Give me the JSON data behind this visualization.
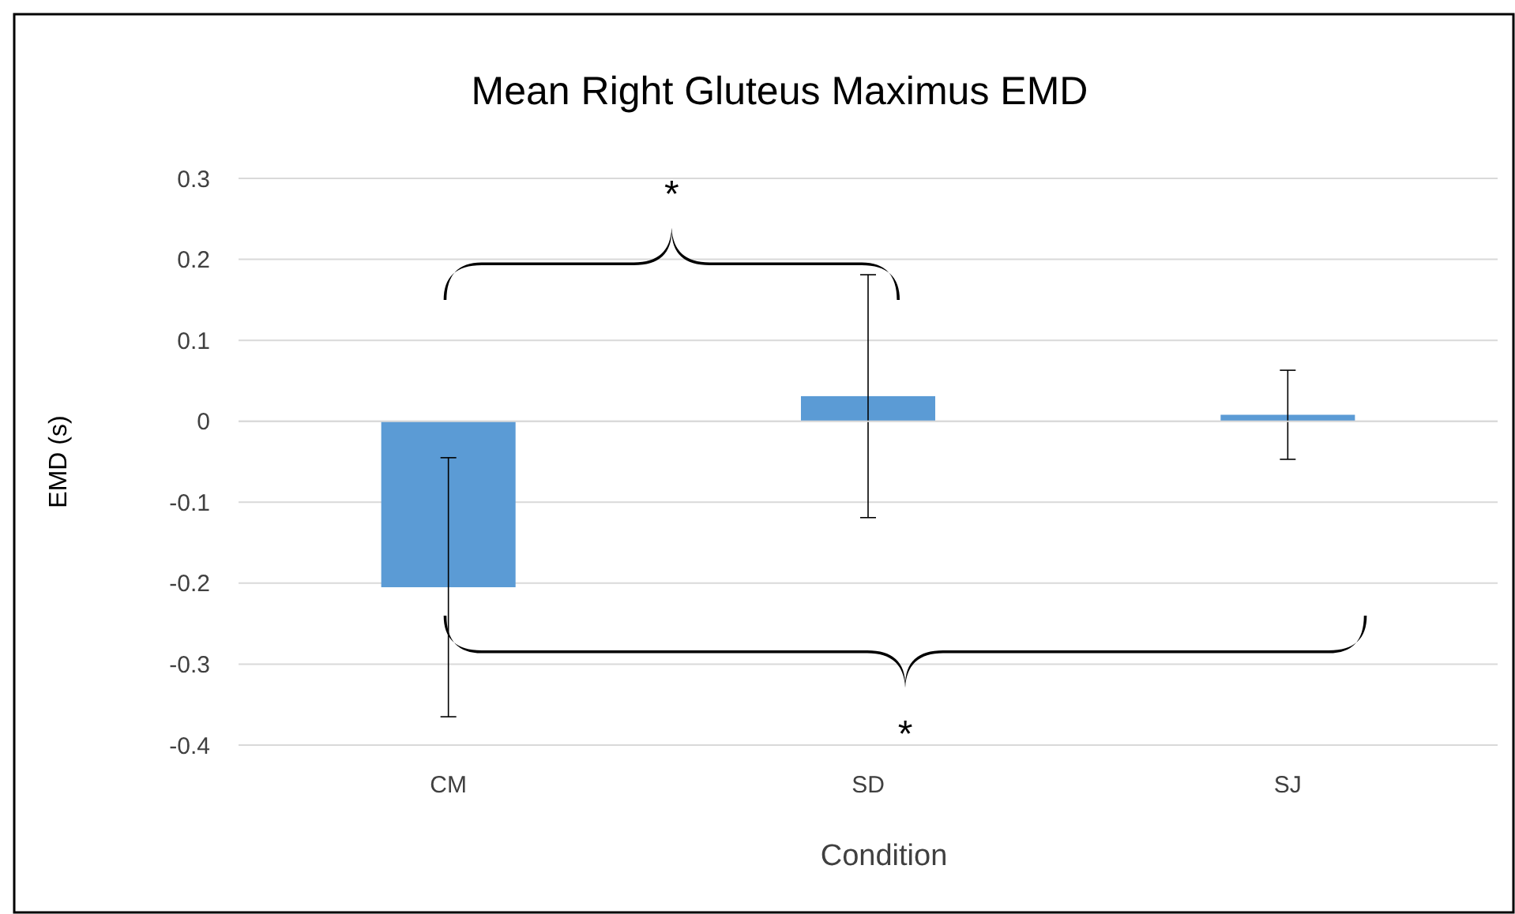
{
  "chart_data": {
    "type": "bar",
    "title": "Mean Right Gluteus Maximus EMD",
    "xlabel": "Condition",
    "ylabel": "EMD (s)",
    "categories": [
      "CM",
      "SD",
      "SJ"
    ],
    "values": [
      -0.205,
      0.031,
      0.008
    ],
    "errors": [
      0.16,
      0.15,
      0.055
    ],
    "color": "#5b9bd5",
    "ylim": [
      -0.4,
      0.3
    ],
    "yticks": [
      {
        "value": -0.4,
        "label": "-0.4"
      },
      {
        "value": -0.3,
        "label": "-0.3"
      },
      {
        "value": -0.2,
        "label": "-0.2"
      },
      {
        "value": -0.1,
        "label": "-0.1"
      },
      0,
      0.1,
      0.2,
      0.3
    ],
    "grid": "y",
    "annotations": [
      "*",
      "*"
    ]
  }
}
